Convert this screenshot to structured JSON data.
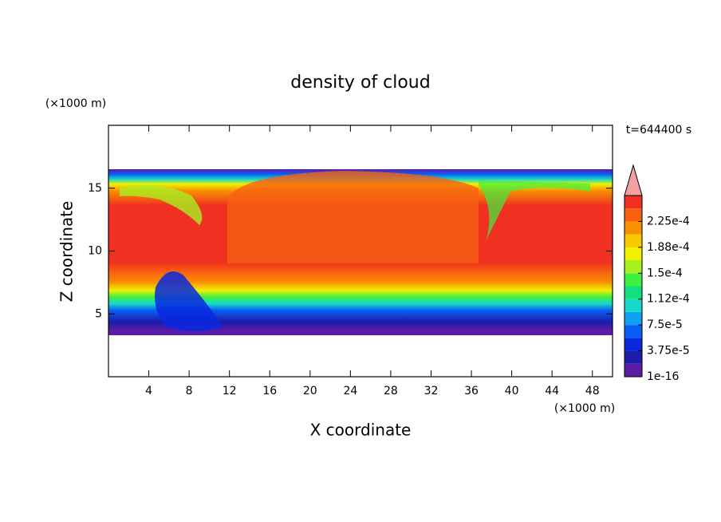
{
  "chart_data": {
    "type": "contour",
    "title": "density of cloud",
    "time_label": "t=644400 s",
    "x_label": "X coordinate",
    "y_label": "Z coordinate",
    "x_unit": "(×1000 m)",
    "y_unit": "(×1000 m)",
    "xlim": [
      0,
      50
    ],
    "ylim": [
      0,
      20
    ],
    "xticks": [
      4,
      8,
      12,
      16,
      20,
      24,
      28,
      32,
      36,
      40,
      44,
      48
    ],
    "yticks": [
      5,
      10,
      15
    ],
    "colorbar": {
      "ticks": [
        1e-16,
        {
          "value": 3.75e-05,
          "label": "3.75e-5"
        },
        {
          "value": 7.5e-05,
          "label": "7.5e-5"
        },
        {
          "value": 0.000112,
          "label": "1.12e-4"
        },
        {
          "value": 0.00015,
          "label": "1.5e-4"
        },
        {
          "value": 0.000188,
          "label": "1.88e-4"
        },
        {
          "value": 0.000225,
          "label": "2.25e-4"
        }
      ],
      "colors": [
        "#5b1ca5",
        "#1c1ca8",
        "#0828e0",
        "#0a5ef5",
        "#10a0f0",
        "#18d8c8",
        "#10e080",
        "#40f040",
        "#a8f020",
        "#f0f000",
        "#f8c800",
        "#f89000",
        "#f86010",
        "#f03020"
      ],
      "extend_color": "#f4a0a0"
    }
  }
}
